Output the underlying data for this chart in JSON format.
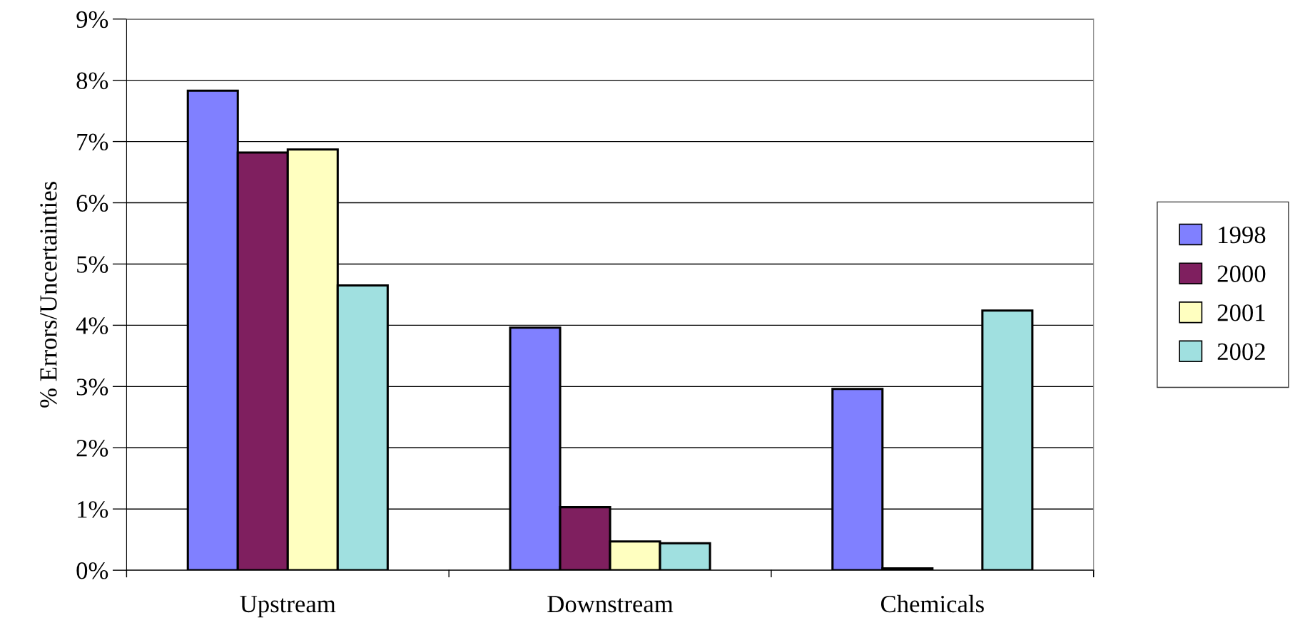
{
  "chart_data": {
    "type": "bar",
    "ylabel": "% Errors/Uncertainties",
    "categories": [
      "Upstream",
      "Downstream",
      "Chemicals"
    ],
    "series": [
      {
        "name": "1998",
        "color": "#8080ff",
        "values": [
          7.83,
          3.96,
          2.96
        ]
      },
      {
        "name": "2000",
        "color": "#7f1f5f",
        "values": [
          6.82,
          1.03,
          0.03
        ]
      },
      {
        "name": "2001",
        "color": "#ffffc0",
        "values": [
          6.87,
          0.47,
          null
        ]
      },
      {
        "name": "2002",
        "color": "#a0e0e0",
        "values": [
          4.65,
          0.44,
          4.24
        ]
      }
    ],
    "ylim": [
      0,
      9
    ],
    "yticks": [
      {
        "value": 0,
        "label": "0%"
      },
      {
        "value": 1,
        "label": "1%"
      },
      {
        "value": 2,
        "label": "2%"
      },
      {
        "value": 3,
        "label": "3%"
      },
      {
        "value": 4,
        "label": "4%"
      },
      {
        "value": 5,
        "label": "5%"
      },
      {
        "value": 6,
        "label": "6%"
      },
      {
        "value": 7,
        "label": "7%"
      },
      {
        "value": 8,
        "label": "8%"
      },
      {
        "value": 9,
        "label": "9%"
      }
    ],
    "grid": "y",
    "legend": "right"
  }
}
